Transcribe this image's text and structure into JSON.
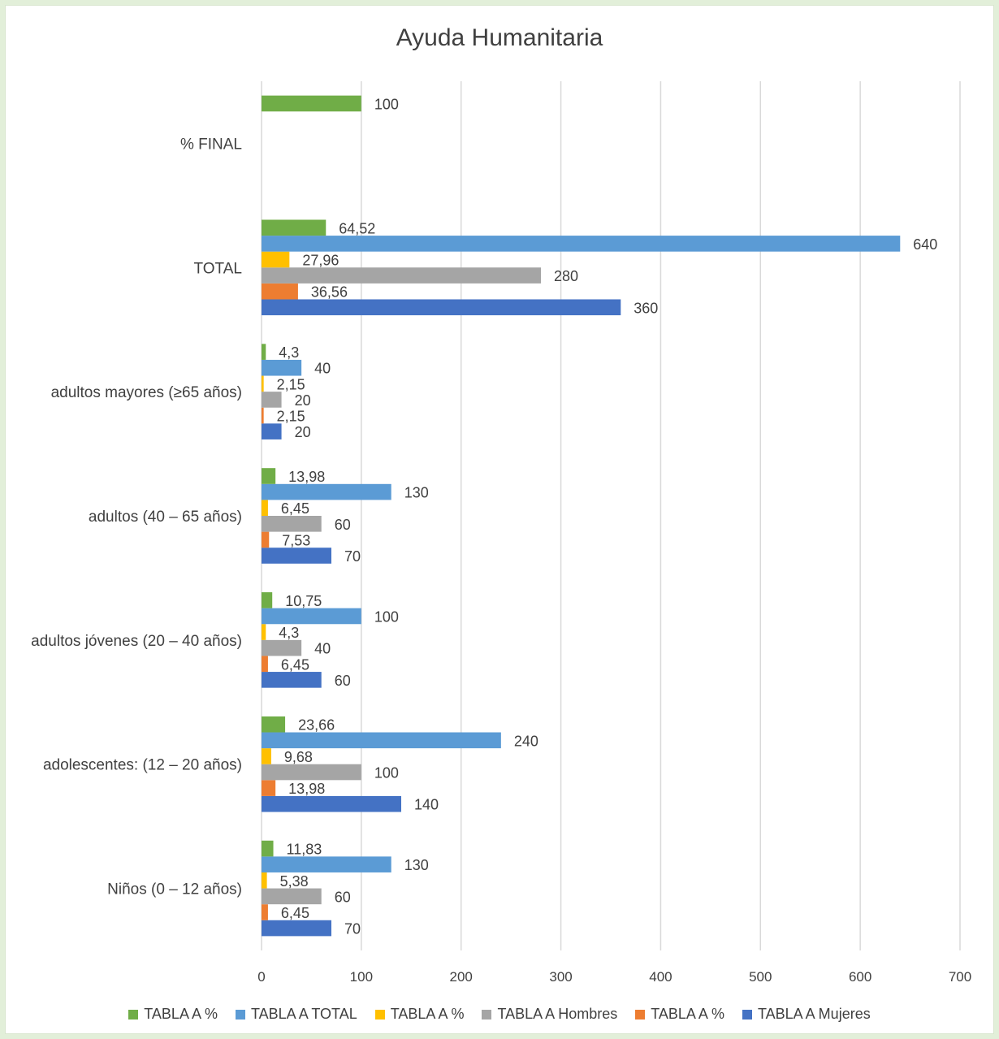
{
  "chart_data": {
    "type": "bar",
    "orientation": "horizontal",
    "title": "Ayuda Humanitaria",
    "categories": [
      "Niños (0 – 12 años)",
      "adolescentes: (12 – 20 años)",
      "adultos jóvenes (20 – 40 años)",
      "adultos (40 – 65 años)",
      "adultos mayores (≥65 años)",
      "TOTAL",
      "% FINAL"
    ],
    "xlim": [
      0,
      700
    ],
    "xticks": [
      0,
      100,
      200,
      300,
      400,
      500,
      600,
      700
    ],
    "grid": true,
    "legend_position": "bottom",
    "series": [
      {
        "name": "TABLA A Mujeres",
        "color": "#4472c4",
        "values": [
          70,
          140,
          60,
          70,
          20,
          360,
          null
        ]
      },
      {
        "name": "TABLA A %",
        "color": "#ed7d31",
        "values": [
          6.45,
          13.98,
          6.45,
          7.53,
          2.15,
          36.56,
          null
        ]
      },
      {
        "name": "TABLA A Hombres",
        "color": "#a5a5a5",
        "values": [
          60,
          100,
          40,
          60,
          20,
          280,
          null
        ]
      },
      {
        "name": "TABLA A %",
        "color": "#ffc000",
        "values": [
          5.38,
          9.68,
          4.3,
          6.45,
          2.15,
          27.96,
          null
        ]
      },
      {
        "name": "TABLA A TOTAL",
        "color": "#5b9bd5",
        "values": [
          130,
          240,
          100,
          130,
          40,
          640,
          null
        ]
      },
      {
        "name": "TABLA A %",
        "color": "#70ad47",
        "values": [
          11.83,
          23.66,
          10.75,
          13.98,
          4.3,
          64.52,
          100
        ]
      }
    ],
    "data_labels": [
      [
        "70",
        "140",
        "60",
        "70",
        "20",
        "360",
        null
      ],
      [
        "6,45",
        "13,98",
        "6,45",
        "7,53",
        "2,15",
        "36,56",
        null
      ],
      [
        "60",
        "100",
        "40",
        "60",
        "20",
        "280",
        null
      ],
      [
        "5,38",
        "9,68",
        "4,3",
        "6,45",
        "2,15",
        "27,96",
        null
      ],
      [
        "130",
        "240",
        "100",
        "130",
        "40",
        "640",
        null
      ],
      [
        "11,83",
        "23,66",
        "10,75",
        "13,98",
        "4,3",
        "64,52",
        "100"
      ]
    ],
    "legend_order": [
      5,
      4,
      3,
      2,
      1,
      0
    ]
  }
}
